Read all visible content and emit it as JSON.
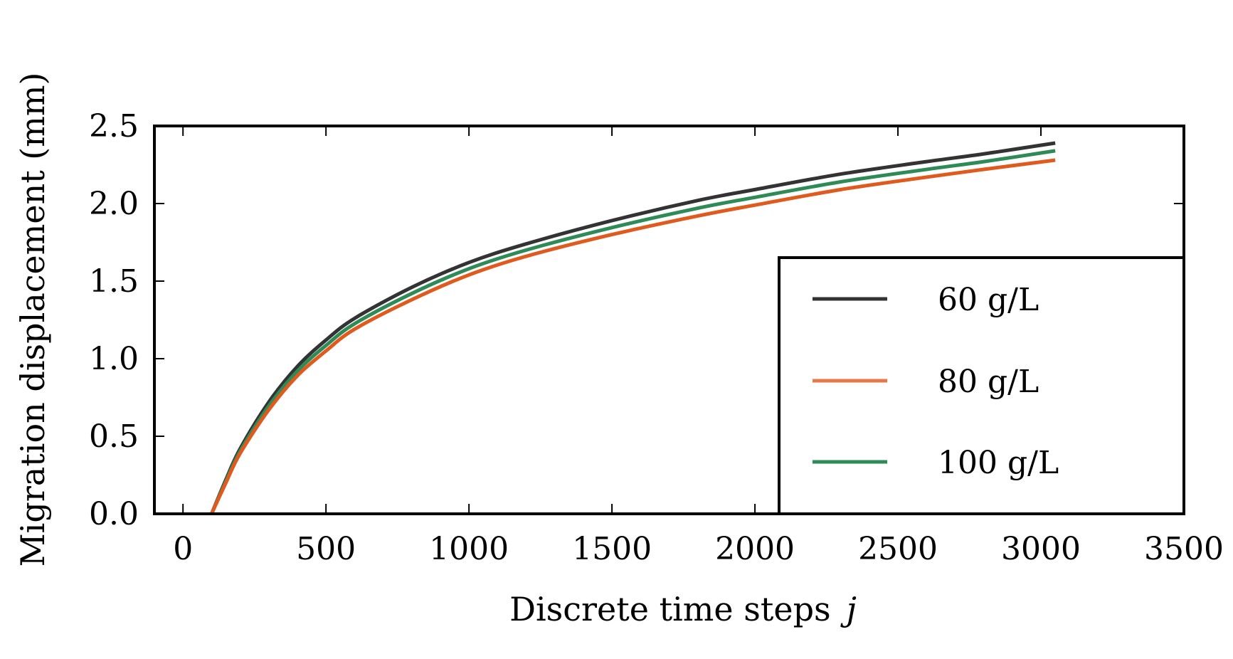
{
  "chart_data": {
    "type": "line",
    "title": "",
    "xlabel": "Discrete time steps",
    "xlabel_var": "j",
    "ylabel": "Migration displacement (mm)",
    "xlim": [
      -100,
      3500
    ],
    "ylim": [
      0,
      2.5
    ],
    "xticks": [
      0,
      500,
      1000,
      1500,
      2000,
      2500,
      3000,
      3500
    ],
    "yticks": [
      0.0,
      0.5,
      1.0,
      1.5,
      2.0,
      2.5
    ],
    "xtick_labels": [
      "0",
      "500",
      "1000",
      "1500",
      "2000",
      "2500",
      "3000",
      "3500"
    ],
    "ytick_labels": [
      "0.0",
      "0.5",
      "1.0",
      "1.5",
      "2.0",
      "2.5"
    ],
    "grid": false,
    "legend_position": "lower-right",
    "x": [
      100,
      150,
      200,
      300,
      400,
      500,
      600,
      800,
      1000,
      1200,
      1500,
      1800,
      2000,
      2300,
      2600,
      2800,
      3050
    ],
    "series": [
      {
        "name": "60 g/L",
        "color": "#333333",
        "values": [
          0.0,
          0.22,
          0.42,
          0.72,
          0.95,
          1.12,
          1.26,
          1.46,
          1.62,
          1.74,
          1.89,
          2.02,
          2.09,
          2.19,
          2.27,
          2.32,
          2.39
        ]
      },
      {
        "name": "80 g/L",
        "color": "#E05A1E",
        "legend_color": "#E8784A",
        "values": [
          0.0,
          0.2,
          0.39,
          0.67,
          0.89,
          1.05,
          1.19,
          1.38,
          1.54,
          1.66,
          1.8,
          1.92,
          1.99,
          2.09,
          2.17,
          2.22,
          2.28
        ]
      },
      {
        "name": "100 g/L",
        "color": "#2E8B57",
        "values": [
          0.0,
          0.21,
          0.405,
          0.695,
          0.92,
          1.085,
          1.225,
          1.42,
          1.58,
          1.7,
          1.845,
          1.97,
          2.04,
          2.14,
          2.22,
          2.27,
          2.34
        ]
      }
    ]
  }
}
